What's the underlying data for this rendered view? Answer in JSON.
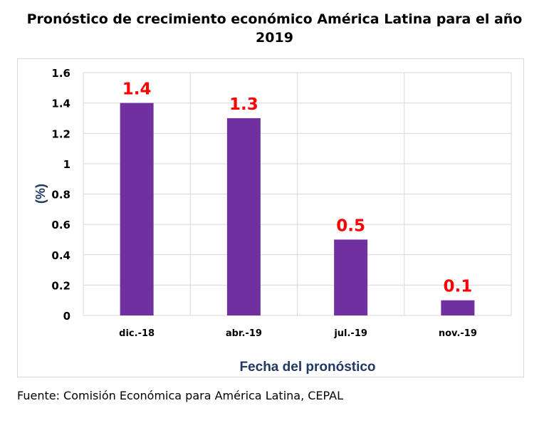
{
  "title_line1": "Pronóstico de crecimiento económico América Latina para el año",
  "title_line2": "2019",
  "source": "Fuente: Comisión Económica para América Latina, CEPAL",
  "colors": {
    "bar": "#7030a0",
    "data_label": "#ff0000",
    "axis_title": "#1f3864",
    "grid": "#d9d9d9"
  },
  "chart_data": {
    "type": "bar",
    "title": "Pronóstico de crecimiento económico América Latina para el año 2019",
    "xlabel": "Fecha del pronóstico",
    "ylabel": "(%)",
    "categories": [
      "dic.-18",
      "abr.-19",
      "jul.-19",
      "nov.-19"
    ],
    "values": [
      1.4,
      1.3,
      0.5,
      0.1
    ],
    "data_labels": [
      "1.4",
      "1.3",
      "0.5",
      "0.1"
    ],
    "ylim": [
      0,
      1.6
    ],
    "yticks": [
      0,
      0.2,
      0.4,
      0.6,
      0.8,
      1,
      1.2,
      1.4,
      1.6
    ],
    "ytick_labels": [
      "0",
      "0.2",
      "0.4",
      "0.6",
      "0.8",
      "1",
      "1.2",
      "1.4",
      "1.6"
    ],
    "grid": true
  }
}
